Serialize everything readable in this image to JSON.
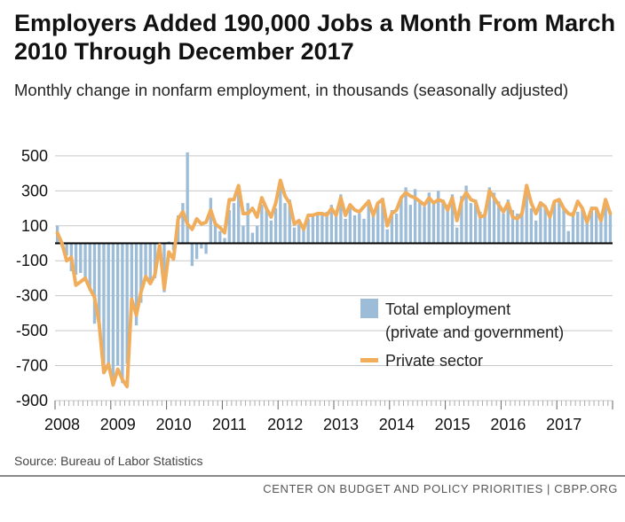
{
  "header": {
    "title": "Employers Added 190,000 Jobs a Month From March 2010 Through December 2017",
    "subtitle": "Monthly change in nonfarm employment, in thousands (seasonally adjusted)"
  },
  "footer": {
    "source": "Source: Bureau of Labor Statistics",
    "credit": "CENTER ON BUDGET AND POLICY PRIORITIES | CBPP.ORG"
  },
  "colors": {
    "total_bar": "#9dbcd8",
    "private_line": "#f0ad5c",
    "grid": "#c8c8c8",
    "zero_line": "#000000"
  },
  "chart_data": {
    "type": "bar",
    "title": "Employers Added 190,000 Jobs a Month From March 2010 Through December 2017",
    "ylabel": "",
    "xlabel": "",
    "ylim": [
      -900,
      540
    ],
    "yticks": [
      500,
      300,
      100,
      -100,
      -300,
      -500,
      -700,
      -900
    ],
    "ytick_labels": [
      "500",
      "300",
      "100",
      "-100",
      "-300",
      "-500",
      "-700",
      "-900"
    ],
    "grid": true,
    "legend_placement": "lower-right",
    "x_start": "2008-01",
    "x_end": "2017-12",
    "year_labels": [
      "2008",
      "2009",
      "2010",
      "2011",
      "2012",
      "2013",
      "2014",
      "2015",
      "2016",
      "2017"
    ],
    "series": [
      {
        "name": "Total employment (private and government)",
        "type": "bar",
        "color": "#9dbcd8",
        "values": [
          100,
          -20,
          -70,
          -160,
          -180,
          -170,
          -210,
          -270,
          -460,
          -480,
          -730,
          -690,
          -780,
          -700,
          -800,
          -690,
          -350,
          -470,
          -340,
          -210,
          -220,
          -200,
          0,
          -280,
          10,
          -40,
          160,
          230,
          520,
          -130,
          -90,
          -30,
          -60,
          260,
          120,
          70,
          30,
          190,
          230,
          310,
          100,
          230,
          60,
          100,
          220,
          200,
          130,
          200,
          360,
          230,
          250,
          90,
          110,
          90,
          140,
          170,
          170,
          160,
          180,
          220,
          180,
          280,
          140,
          200,
          160,
          170,
          140,
          250,
          170,
          220,
          260,
          80,
          190,
          170,
          260,
          320,
          220,
          310,
          240,
          210,
          290,
          230,
          300,
          250,
          220,
          280,
          90,
          270,
          330,
          230,
          250,
          180,
          170,
          320,
          290,
          240,
          170,
          250,
          190,
          170,
          170,
          300,
          200,
          130,
          240,
          210,
          170,
          240,
          240,
          200,
          70,
          180,
          180,
          200,
          140,
          210,
          200,
          140,
          220,
          170
        ]
      },
      {
        "name": "Private sector",
        "type": "line",
        "color": "#f0ad5c",
        "values": [
          60,
          0,
          -100,
          -80,
          -240,
          -220,
          -200,
          -260,
          -310,
          -460,
          -740,
          -690,
          -810,
          -720,
          -780,
          -820,
          -320,
          -410,
          -280,
          -190,
          -230,
          -180,
          -10,
          -260,
          -50,
          -90,
          140,
          180,
          110,
          80,
          140,
          110,
          120,
          190,
          110,
          90,
          60,
          250,
          250,
          330,
          170,
          170,
          200,
          150,
          260,
          200,
          150,
          230,
          360,
          270,
          230,
          110,
          130,
          80,
          160,
          160,
          170,
          170,
          160,
          200,
          160,
          260,
          160,
          220,
          190,
          180,
          210,
          240,
          160,
          230,
          250,
          100,
          170,
          190,
          260,
          290,
          270,
          260,
          240,
          220,
          260,
          230,
          250,
          240,
          190,
          260,
          130,
          240,
          290,
          250,
          240,
          150,
          160,
          300,
          260,
          220,
          180,
          230,
          150,
          140,
          170,
          330,
          230,
          170,
          230,
          210,
          150,
          240,
          250,
          200,
          170,
          160,
          240,
          200,
          120,
          200,
          200,
          130,
          250,
          170
        ]
      }
    ]
  }
}
